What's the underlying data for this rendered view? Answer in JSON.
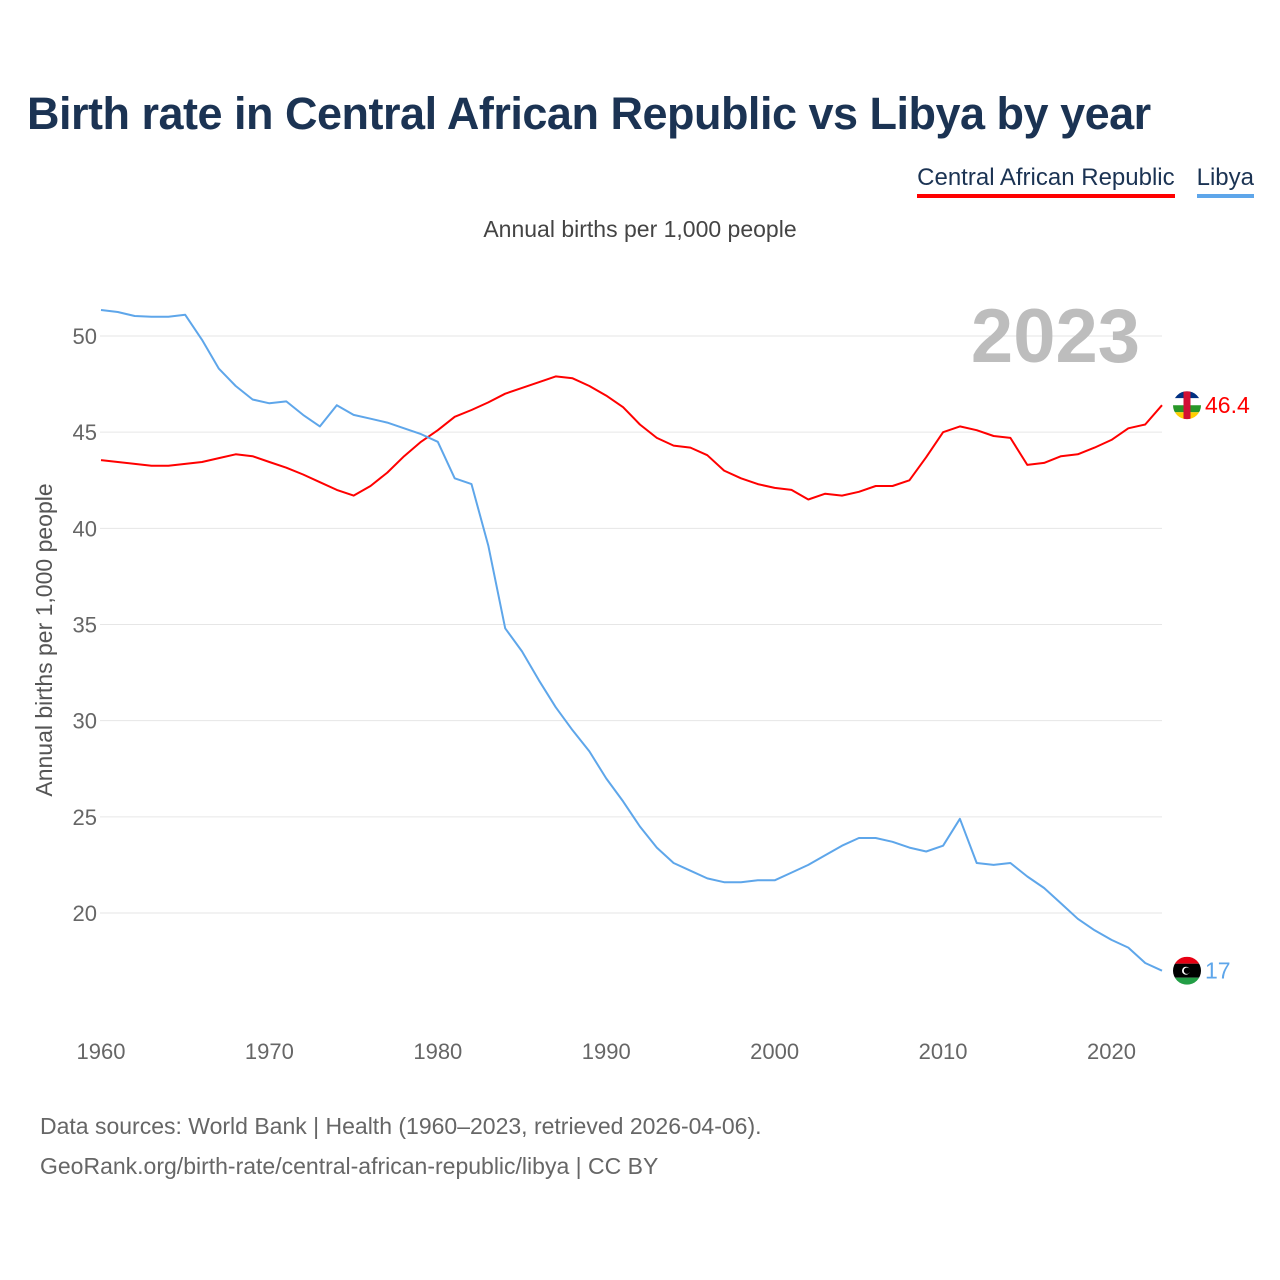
{
  "chart_data": {
    "type": "line",
    "title": "Birth rate in Central African Republic vs Libya by year",
    "subtitle": "Annual births per 1,000 people",
    "ylabel": "Annual births per 1,000 people",
    "xlabel": "",
    "year_label": "2023",
    "xlim": [
      1960,
      2023
    ],
    "ylim": [
      15,
      52.5
    ],
    "x_ticks": [
      1960,
      1970,
      1980,
      1990,
      2000,
      2010,
      2020
    ],
    "y_ticks": [
      20,
      25,
      30,
      35,
      40,
      45,
      50
    ],
    "grid": true,
    "legend_position": "top-right",
    "x": [
      1960,
      1961,
      1962,
      1963,
      1964,
      1965,
      1966,
      1967,
      1968,
      1969,
      1970,
      1971,
      1972,
      1973,
      1974,
      1975,
      1976,
      1977,
      1978,
      1979,
      1980,
      1981,
      1982,
      1983,
      1984,
      1985,
      1986,
      1987,
      1988,
      1989,
      1990,
      1991,
      1992,
      1993,
      1994,
      1995,
      1996,
      1997,
      1998,
      1999,
      2000,
      2001,
      2002,
      2003,
      2004,
      2005,
      2006,
      2007,
      2008,
      2009,
      2010,
      2011,
      2012,
      2013,
      2014,
      2015,
      2016,
      2017,
      2018,
      2019,
      2020,
      2021,
      2022,
      2023
    ],
    "series": [
      {
        "name": "Central African Republic",
        "color": "#ff0000",
        "end_label": "46.4",
        "values": [
          43.55,
          43.45,
          43.35,
          43.25,
          43.25,
          43.35,
          43.45,
          43.65,
          43.85,
          43.75,
          43.45,
          43.15,
          42.8,
          42.4,
          42.0,
          41.7,
          42.2,
          42.9,
          43.75,
          44.5,
          45.1,
          45.8,
          46.15,
          46.55,
          47.0,
          47.3,
          47.6,
          47.9,
          47.8,
          47.4,
          46.9,
          46.3,
          45.4,
          44.7,
          44.3,
          44.2,
          43.8,
          43.0,
          42.6,
          42.3,
          42.1,
          42.0,
          41.5,
          41.8,
          41.7,
          41.9,
          42.2,
          42.2,
          42.5,
          43.7,
          45.0,
          45.3,
          45.1,
          44.8,
          44.7,
          43.3,
          43.4,
          43.75,
          43.85,
          44.2,
          44.6,
          45.2,
          45.4,
          46.4
        ]
      },
      {
        "name": "Libya",
        "color": "#5ea6ea",
        "end_label": "17",
        "values": [
          51.35,
          51.25,
          51.04,
          51.0,
          51.0,
          51.1,
          49.8,
          48.3,
          47.4,
          46.7,
          46.5,
          46.6,
          45.9,
          45.3,
          46.4,
          45.9,
          45.7,
          45.5,
          45.2,
          44.9,
          44.5,
          42.6,
          42.3,
          39.1,
          34.8,
          33.6,
          32.1,
          30.7,
          29.5,
          28.4,
          27.0,
          25.8,
          24.5,
          23.4,
          22.6,
          22.2,
          21.8,
          21.6,
          21.6,
          21.7,
          21.7,
          22.1,
          22.5,
          23.0,
          23.5,
          23.9,
          23.9,
          23.7,
          23.4,
          23.2,
          23.5,
          24.9,
          22.6,
          22.5,
          22.6,
          21.9,
          21.3,
          20.5,
          19.7,
          19.1,
          18.6,
          18.2,
          17.4,
          17.0
        ]
      }
    ]
  },
  "footer": {
    "line1": "Data sources: World Bank | Health (1960–2023, retrieved 2026-04-06).",
    "line2": "GeoRank.org/birth-rate/central-african-republic/libya | CC BY"
  }
}
